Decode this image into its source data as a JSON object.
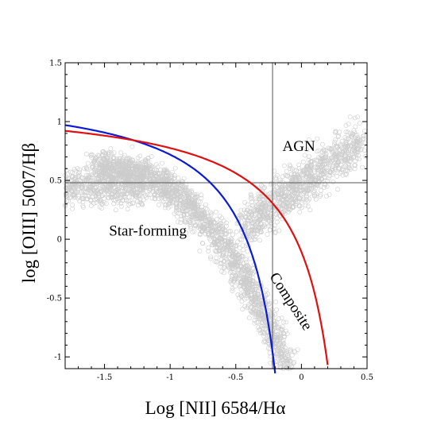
{
  "chart_data": {
    "type": "scatter",
    "title": "",
    "xlabel": "Log [NII] 6584/Hα",
    "ylabel": "log [OIII] 5007/Hβ",
    "xlim": [
      -1.8,
      0.5
    ],
    "ylim": [
      -1.1,
      1.5
    ],
    "grid": false,
    "x_ticks": [
      -1.5,
      -1,
      -0.5,
      0,
      0.5
    ],
    "x_tick_labels": [
      "-1.5",
      "-1",
      "-0.5",
      "0",
      "0.5"
    ],
    "y_ticks": [
      -1,
      -0.5,
      0,
      0.5,
      1,
      1.5
    ],
    "y_tick_labels": [
      "-1",
      "-0.5",
      "0",
      "0.5",
      "1",
      "1.5"
    ],
    "reference_lines": [
      {
        "orientation": "vertical",
        "x": -0.22
      },
      {
        "orientation": "horizontal",
        "y": 0.48
      }
    ],
    "series": [
      {
        "kind": "scatter",
        "color": "#cccccc",
        "marker": "open-circle",
        "count_estimate": "many"
      },
      {
        "kind": "curve",
        "formula": "0.61/(x-0.05)+1.3",
        "x_range": [
          -1.8,
          -0.2
        ],
        "color": "#0a1ad6"
      },
      {
        "kind": "curve",
        "formula": "0.61/(x-0.47)+1.19",
        "x_range": [
          -1.8,
          0.2
        ],
        "color": "#e01010"
      }
    ],
    "annotations": [
      {
        "text": "AGN",
        "x": -0.02,
        "y": 0.75
      },
      {
        "text": "Star-forming",
        "x": -1.17,
        "y": 0.03
      },
      {
        "text": "Composite",
        "x": -0.11,
        "y": -0.55,
        "rotation_deg": 57
      }
    ]
  }
}
